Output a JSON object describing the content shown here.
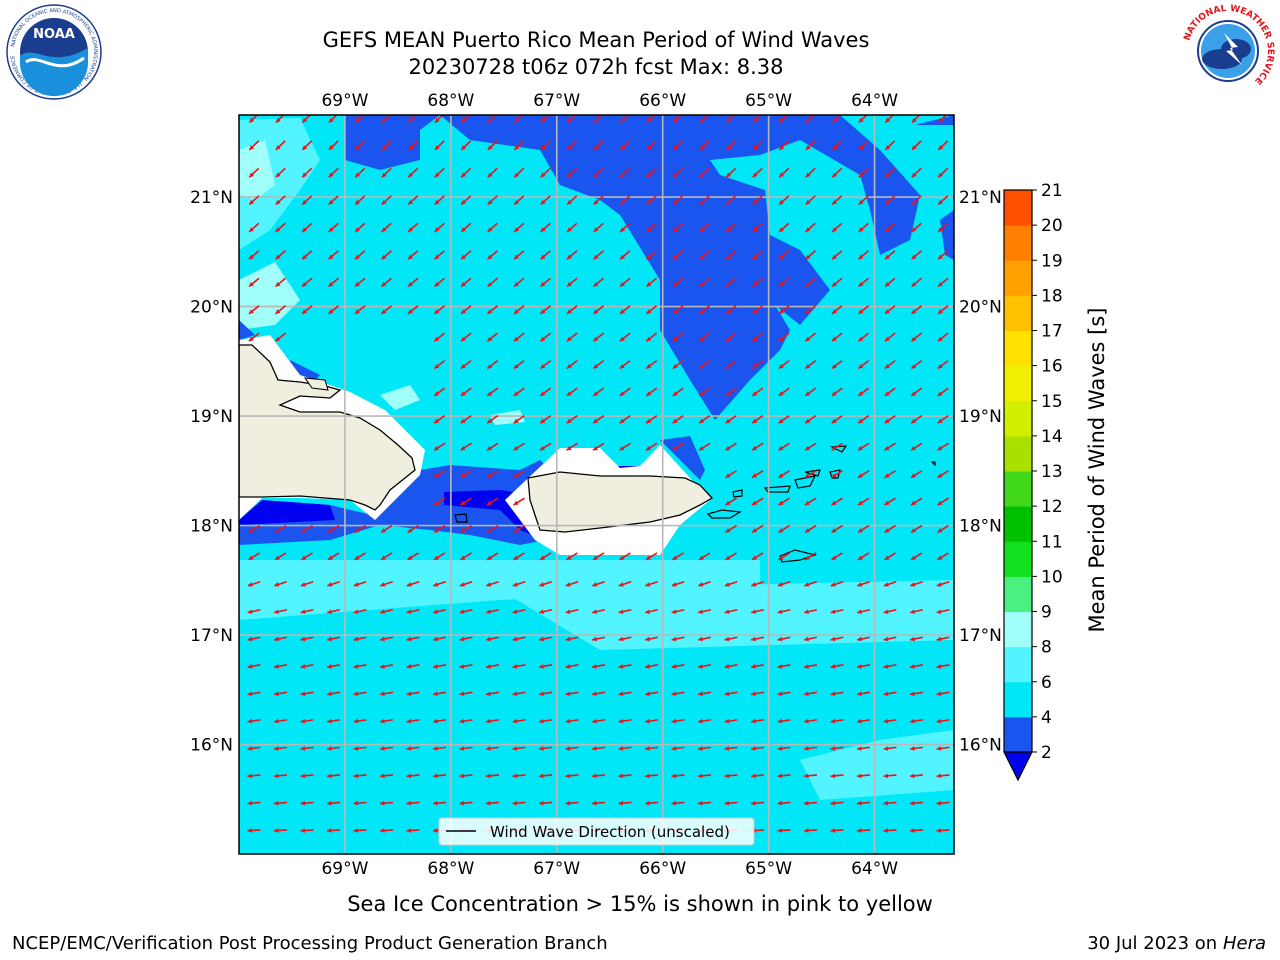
{
  "header": {
    "title_line1": "GEFS MEAN Puerto Rico Mean Period of Wind Waves",
    "title_line2": "20230728 t06z 072h fcst   Max: 8.38"
  },
  "logos": {
    "left": "noaa-logo",
    "left_text": "NOAA",
    "left_ring_text": "NATIONAL OCEANIC AND ATMOSPHERIC ADMINISTRATION · U.S. DEPARTMENT OF COMMERCE",
    "right": "nws-logo",
    "right_ring_text": "NATIONAL WEATHER SERVICE"
  },
  "map": {
    "lon_range": [
      -70.0,
      -63.25
    ],
    "lat_range": [
      15.0,
      21.75
    ],
    "lon_ticks": [
      "69°W",
      "68°W",
      "67°W",
      "66°W",
      "65°W",
      "64°W"
    ],
    "lon_tick_values": [
      -69,
      -68,
      -67,
      -66,
      -65,
      -64
    ],
    "lat_ticks": [
      "21°N",
      "20°N",
      "19°N",
      "18°N",
      "17°N",
      "16°N"
    ],
    "lat_tick_values": [
      21,
      20,
      19,
      18,
      17,
      16
    ],
    "grid": true,
    "legend": {
      "label": "Wind Wave Direction (unscaled)",
      "placement": "bottom-center"
    }
  },
  "colorbar": {
    "label": "Mean Period of Wind Waves [s]",
    "ticks": [
      "2",
      "4",
      "6",
      "8",
      "9",
      "10",
      "11",
      "12",
      "13",
      "14",
      "15",
      "16",
      "17",
      "18",
      "19",
      "20",
      "21"
    ],
    "colors": [
      "#1a55f0",
      "#00e8f8",
      "#52f5ff",
      "#a0fff8",
      "#4af080",
      "#10e020",
      "#00c000",
      "#40d818",
      "#aae000",
      "#d0f000",
      "#f0f000",
      "#ffe000",
      "#ffc000",
      "#ffa000",
      "#ff8000",
      "#ff5000",
      "#ff2000",
      "#ff0000"
    ],
    "underflow_color": "#0000f0"
  },
  "chart_data": {
    "type": "heatmap",
    "variable": "Mean Period of Wind Waves [s]",
    "max": 8.38,
    "dominant_direction": "toward southwest",
    "levels": [
      2,
      4,
      6,
      8,
      9,
      10,
      11,
      12,
      13,
      14,
      15,
      16,
      17,
      18,
      19,
      20,
      21
    ]
  },
  "notes": {
    "sea_ice": "Sea Ice Concentration > 15% is shown in pink to yellow"
  },
  "footer": {
    "left": "NCEP/EMC/Verification Post Processing Product Generation Branch",
    "right_date": "30 Jul 2023 on",
    "right_host": "Hera"
  }
}
